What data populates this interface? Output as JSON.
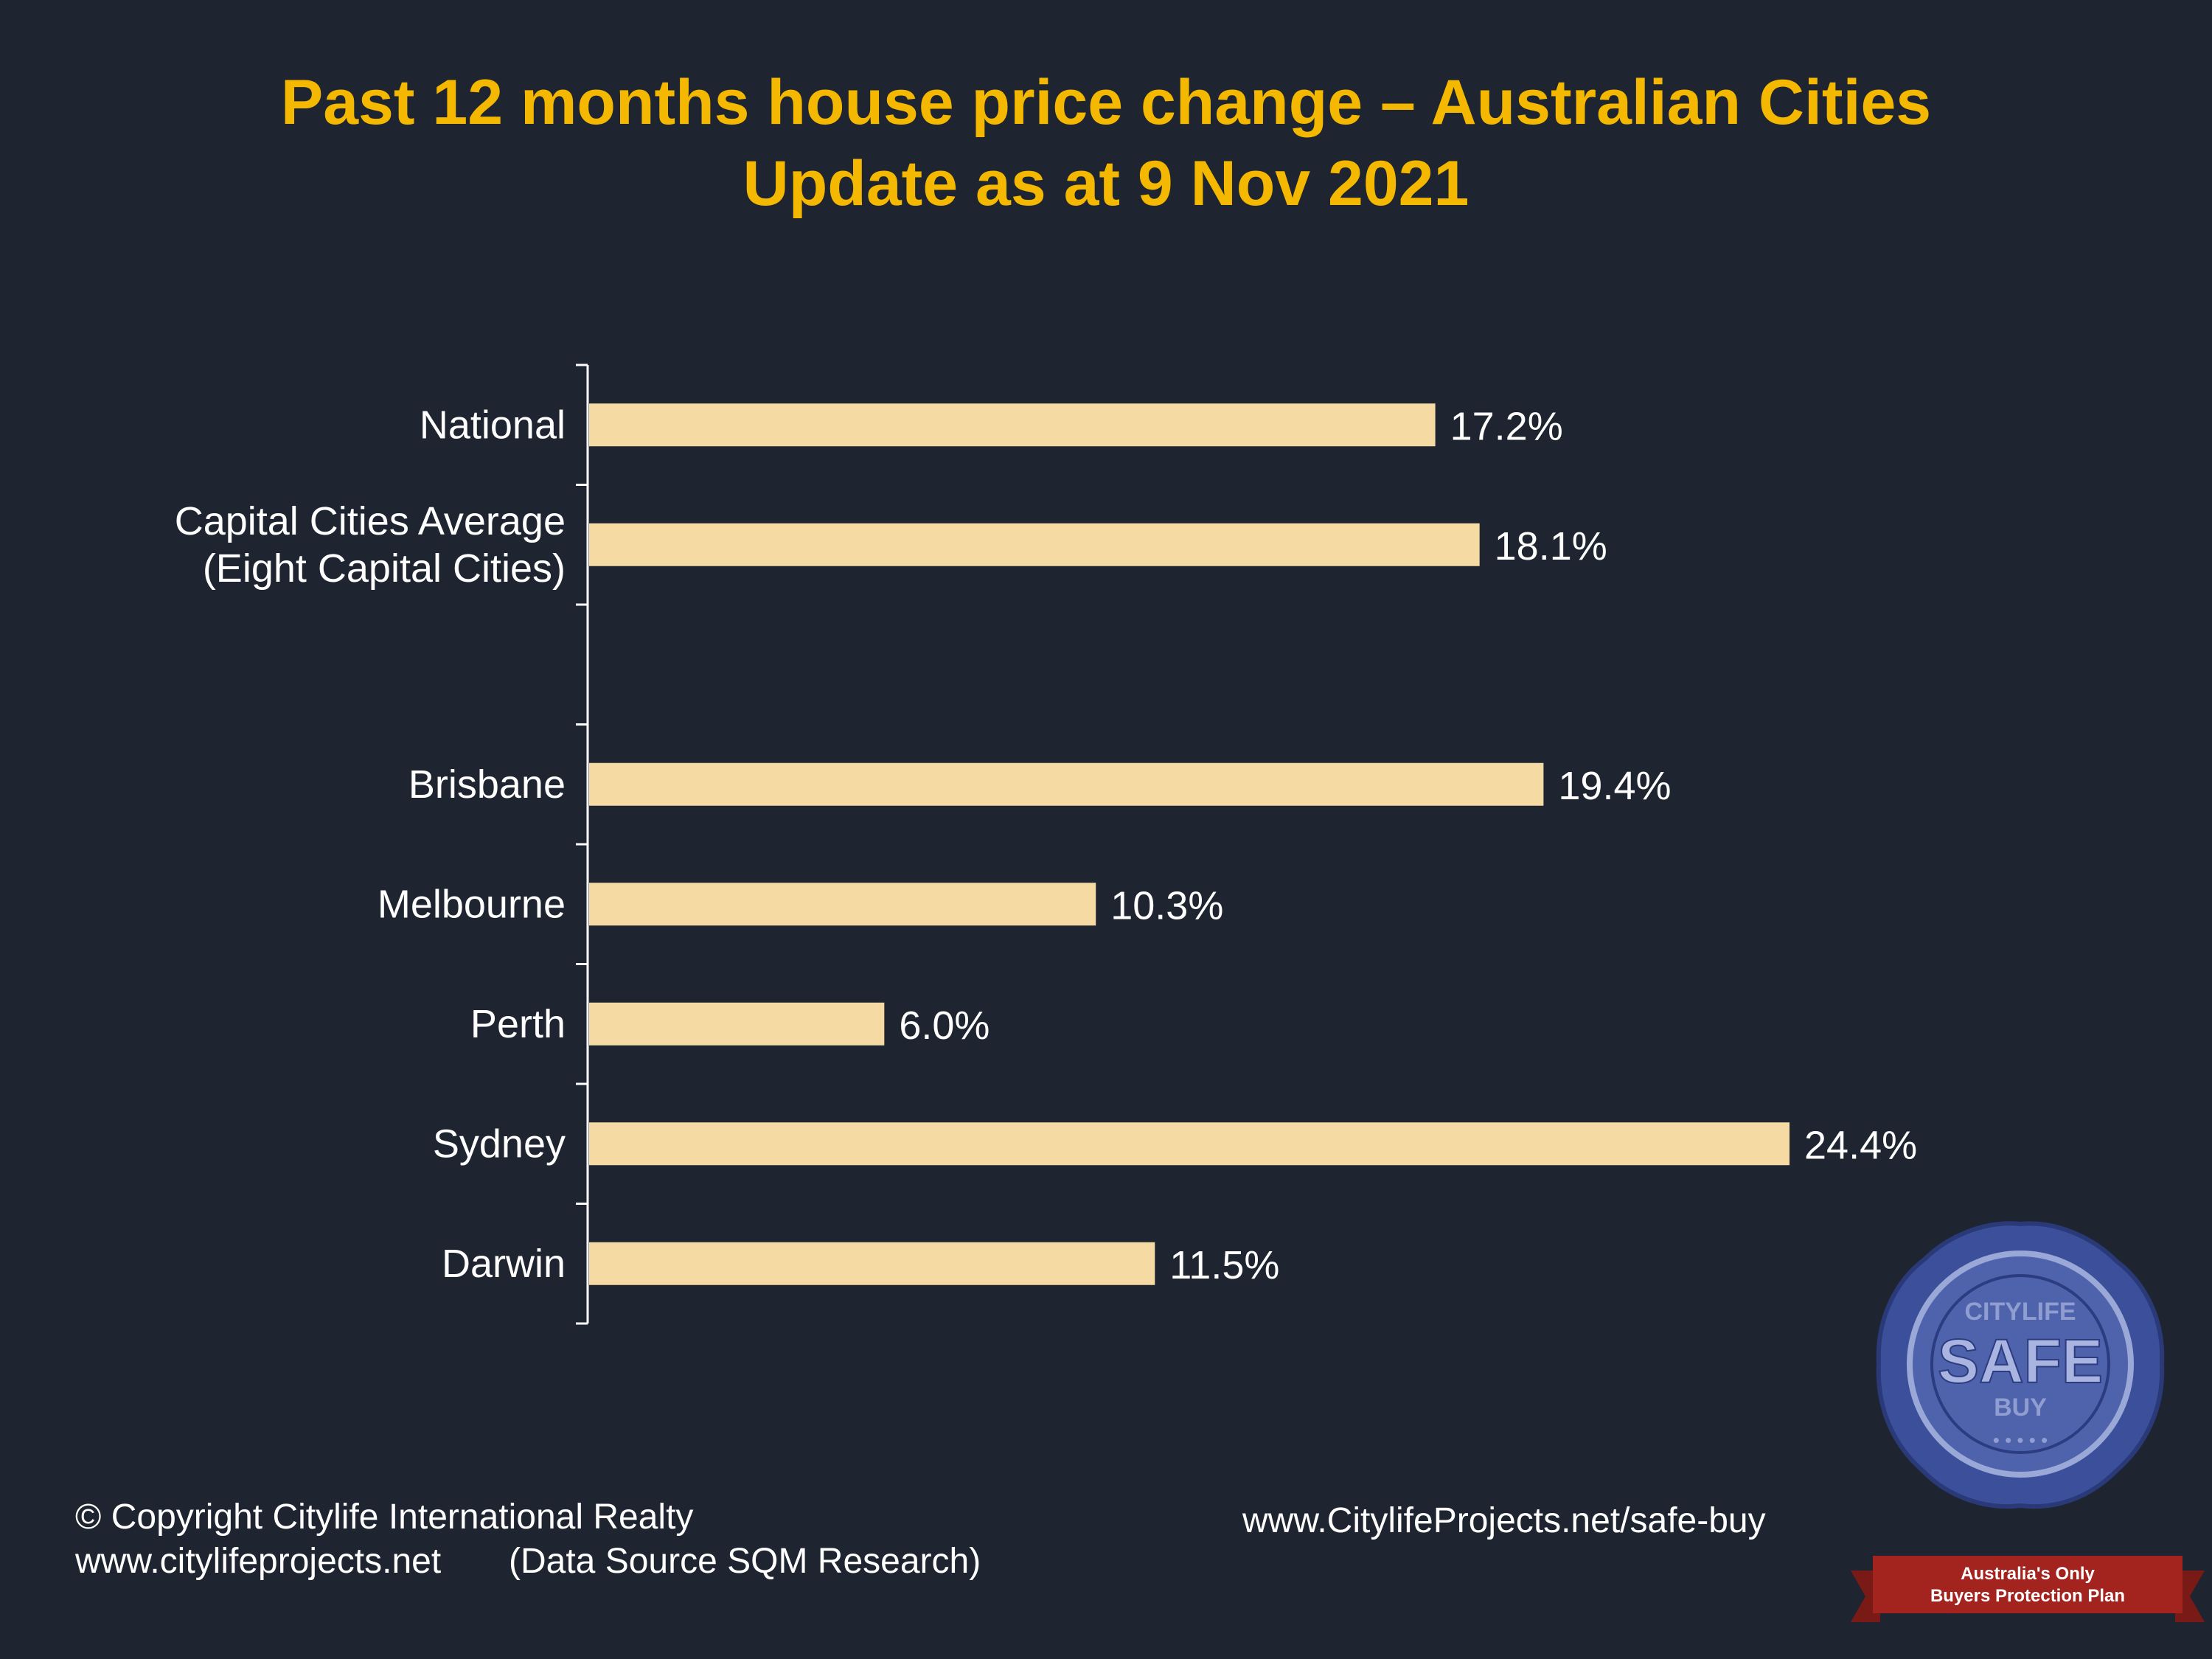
{
  "title": {
    "line1": "Past 12 months house price change – Australian  Cities",
    "line2": "Update as at 9 Nov 2021"
  },
  "footer": {
    "copyright": "© Copyright  Citylife International  Realty",
    "website": "www.citylifeprojects.net",
    "source": "(Data Source SQM Research)",
    "safe_buy_url": "www.CitylifeProjects.net/safe-buy"
  },
  "badge": {
    "seal_top_text": "CITYLIFE",
    "seal_main_text": "SAFE",
    "seal_sub_text": "BUY",
    "banner_line1": "Australia's Only",
    "banner_line2": "Buyers Protection Plan"
  },
  "colors": {
    "background": "#1e2530",
    "bar": "#f5dba3",
    "title": "#f5b800",
    "text": "#ffffff",
    "seal": "#3b4f9a",
    "banner": "#a3231f"
  },
  "chart_data": {
    "type": "bar",
    "orientation": "horizontal",
    "categories": [
      [
        "National"
      ],
      [
        "Capital Cities Average",
        "(Eight Capital Cities)"
      ],
      [],
      [
        "Brisbane"
      ],
      [
        "Melbourne"
      ],
      [
        "Perth"
      ],
      [
        "Sydney"
      ],
      [
        "Darwin"
      ]
    ],
    "values": [
      17.2,
      18.1,
      null,
      19.4,
      10.3,
      6.0,
      24.4,
      11.5
    ],
    "data_labels": [
      "17.2%",
      "18.1%",
      "",
      "19.4%",
      "10.3%",
      "6.0%",
      "24.4%",
      "11.5%"
    ],
    "xlim": [
      0,
      25
    ],
    "grid": false,
    "legend": "none"
  }
}
